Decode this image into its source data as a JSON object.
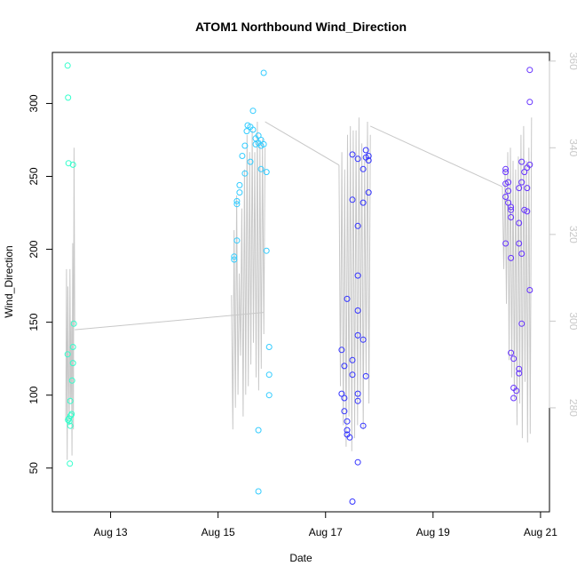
{
  "chart_data": {
    "type": "scatter",
    "title": "ATOM1 Northbound Wind_Direction",
    "xlabel": "Date",
    "ylabel": "Wind_Direction",
    "xlim": [
      "2024-08-11 22:00",
      "2024-08-21 04:00"
    ],
    "ylim": [
      20,
      335
    ],
    "y_ticks": [
      50,
      100,
      150,
      200,
      250,
      300
    ],
    "x_ticks": [
      {
        "label": "Aug 13",
        "value": "2024-08-13 00:00"
      },
      {
        "label": "Aug 15",
        "value": "2024-08-15 00:00"
      },
      {
        "label": "Aug 17",
        "value": "2024-08-17 00:00"
      },
      {
        "label": "Aug 19",
        "value": "2024-08-19 00:00"
      },
      {
        "label": "Aug 21",
        "value": "2024-08-21 00:00"
      }
    ],
    "secondary_y": {
      "ylim": [
        256,
        362
      ],
      "ticks": [
        280,
        300,
        320,
        340,
        360
      ],
      "color": "#c8c8c8"
    },
    "grid": false,
    "series": [
      {
        "color": "#33ffcc",
        "points": [
          [
            "2024-08-12 04:48",
            326
          ],
          [
            "2024-08-12 05:00",
            304
          ],
          [
            "2024-08-12 05:12",
            259
          ],
          [
            "2024-08-12 07:12",
            258
          ],
          [
            "2024-08-12 07:36",
            149
          ],
          [
            "2024-08-12 07:12",
            133
          ],
          [
            "2024-08-12 04:48",
            128
          ],
          [
            "2024-08-12 07:12",
            122
          ],
          [
            "2024-08-12 06:48",
            110
          ],
          [
            "2024-08-12 06:00",
            96
          ],
          [
            "2024-08-12 06:36",
            87
          ],
          [
            "2024-08-12 06:12",
            86
          ],
          [
            "2024-08-12 05:24",
            84
          ],
          [
            "2024-08-12 05:00",
            83
          ],
          [
            "2024-08-12 05:36",
            82
          ],
          [
            "2024-08-12 06:00",
            79
          ],
          [
            "2024-08-12 05:48",
            53
          ]
        ]
      },
      {
        "color": "#33ccff",
        "points": [
          [
            "2024-08-15 20:24",
            321
          ],
          [
            "2024-08-15 15:36",
            295
          ],
          [
            "2024-08-15 13:12",
            285
          ],
          [
            "2024-08-15 14:24",
            284
          ],
          [
            "2024-08-15 15:36",
            282
          ],
          [
            "2024-08-15 12:48",
            281
          ],
          [
            "2024-08-15 18:00",
            278
          ],
          [
            "2024-08-15 16:48",
            276
          ],
          [
            "2024-08-15 19:12",
            275
          ],
          [
            "2024-08-15 18:00",
            273
          ],
          [
            "2024-08-15 16:48",
            272
          ],
          [
            "2024-08-15 19:12",
            271
          ],
          [
            "2024-08-15 12:00",
            271
          ],
          [
            "2024-08-15 20:24",
            272
          ],
          [
            "2024-08-15 10:48",
            264
          ],
          [
            "2024-08-15 14:24",
            260
          ],
          [
            "2024-08-15 19:12",
            255
          ],
          [
            "2024-08-15 21:36",
            253
          ],
          [
            "2024-08-15 12:00",
            252
          ],
          [
            "2024-08-15 09:36",
            244
          ],
          [
            "2024-08-15 09:36",
            239
          ],
          [
            "2024-08-15 08:24",
            233
          ],
          [
            "2024-08-15 08:24",
            231
          ],
          [
            "2024-08-15 08:24",
            206
          ],
          [
            "2024-08-15 21:36",
            199
          ],
          [
            "2024-08-15 07:12",
            195
          ],
          [
            "2024-08-15 07:12",
            193
          ],
          [
            "2024-08-15 22:48",
            133
          ],
          [
            "2024-08-15 22:48",
            114
          ],
          [
            "2024-08-15 22:48",
            100
          ],
          [
            "2024-08-15 18:00",
            76
          ],
          [
            "2024-08-15 18:00",
            34
          ]
        ]
      },
      {
        "color": "#3333ff",
        "points": [
          [
            "2024-08-17 12:00",
            265
          ],
          [
            "2024-08-17 18:00",
            268
          ],
          [
            "2024-08-17 19:12",
            264
          ],
          [
            "2024-08-17 18:00",
            263
          ],
          [
            "2024-08-17 14:24",
            262
          ],
          [
            "2024-08-17 19:12",
            261
          ],
          [
            "2024-08-17 16:48",
            255
          ],
          [
            "2024-08-17 19:12",
            239
          ],
          [
            "2024-08-17 12:00",
            234
          ],
          [
            "2024-08-17 16:48",
            232
          ],
          [
            "2024-08-17 14:24",
            216
          ],
          [
            "2024-08-17 14:24",
            182
          ],
          [
            "2024-08-17 09:36",
            166
          ],
          [
            "2024-08-17 14:24",
            158
          ],
          [
            "2024-08-17 14:24",
            141
          ],
          [
            "2024-08-17 16:48",
            138
          ],
          [
            "2024-08-17 07:12",
            131
          ],
          [
            "2024-08-17 12:00",
            124
          ],
          [
            "2024-08-17 08:24",
            120
          ],
          [
            "2024-08-17 12:00",
            114
          ],
          [
            "2024-08-17 18:00",
            113
          ],
          [
            "2024-08-17 07:12",
            101
          ],
          [
            "2024-08-17 14:24",
            101
          ],
          [
            "2024-08-17 08:24",
            98
          ],
          [
            "2024-08-17 14:24",
            96
          ],
          [
            "2024-08-17 08:24",
            89
          ],
          [
            "2024-08-17 09:36",
            82
          ],
          [
            "2024-08-17 16:48",
            79
          ],
          [
            "2024-08-17 09:36",
            76
          ],
          [
            "2024-08-17 09:36",
            73
          ],
          [
            "2024-08-17 10:48",
            71
          ],
          [
            "2024-08-17 14:24",
            54
          ],
          [
            "2024-08-17 12:00",
            27
          ]
        ]
      },
      {
        "color": "#6633ff",
        "points": [
          [
            "2024-08-20 19:12",
            323
          ],
          [
            "2024-08-20 19:12",
            301
          ],
          [
            "2024-08-20 15:36",
            260
          ],
          [
            "2024-08-20 19:12",
            258
          ],
          [
            "2024-08-20 18:00",
            256
          ],
          [
            "2024-08-20 08:24",
            255
          ],
          [
            "2024-08-20 08:24",
            253
          ],
          [
            "2024-08-20 16:48",
            253
          ],
          [
            "2024-08-20 09:36",
            246
          ],
          [
            "2024-08-20 08:24",
            245
          ],
          [
            "2024-08-20 15:36",
            246
          ],
          [
            "2024-08-20 14:24",
            242
          ],
          [
            "2024-08-20 18:00",
            242
          ],
          [
            "2024-08-20 09:36",
            240
          ],
          [
            "2024-08-20 08:24",
            236
          ],
          [
            "2024-08-20 09:36",
            232
          ],
          [
            "2024-08-20 10:48",
            229
          ],
          [
            "2024-08-20 10:48",
            227
          ],
          [
            "2024-08-20 16:48",
            227
          ],
          [
            "2024-08-20 18:00",
            226
          ],
          [
            "2024-08-20 10:48",
            222
          ],
          [
            "2024-08-20 14:24",
            218
          ],
          [
            "2024-08-20 08:24",
            204
          ],
          [
            "2024-08-20 14:24",
            204
          ],
          [
            "2024-08-20 15:36",
            197
          ],
          [
            "2024-08-20 10:48",
            194
          ],
          [
            "2024-08-20 19:12",
            172
          ],
          [
            "2024-08-20 15:36",
            149
          ],
          [
            "2024-08-20 10:48",
            129
          ],
          [
            "2024-08-20 12:00",
            125
          ],
          [
            "2024-08-20 14:24",
            118
          ],
          [
            "2024-08-20 14:24",
            115
          ],
          [
            "2024-08-20 12:00",
            105
          ],
          [
            "2024-08-20 13:12",
            103
          ],
          [
            "2024-08-20 12:00",
            98
          ]
        ]
      }
    ],
    "secondary_line": {
      "color": "#c8c8c8",
      "segments": [
        {
          "start": "2024-08-12 04:00",
          "end": "2024-08-12 08:00",
          "values": [
            277,
            312,
            268,
            308,
            288,
            276,
            312,
            282,
            300,
            269,
            318,
            275,
            340,
            299
          ]
        },
        {
          "start": "2024-08-15 06:00",
          "end": "2024-08-15 21:00",
          "values": [
            306,
            275,
            321,
            280,
            329,
            283,
            311,
            292,
            326,
            278,
            335,
            283,
            343,
            285,
            339,
            290,
            344,
            295,
            339,
            287,
            346,
            284,
            341,
            289,
            342,
            297,
            340
          ]
        },
        {
          "start": "2024-08-17 06:00",
          "end": "2024-08-17 20:00",
          "values": [
            336,
            285,
            339,
            276,
            335,
            271,
            343,
            278,
            345,
            270,
            344,
            273,
            344,
            276,
            347,
            282,
            341,
            275,
            338,
            287,
            346,
            281,
            343
          ]
        },
        {
          "start": "2024-08-20 07:00",
          "end": "2024-08-20 20:00",
          "values": [
            331,
            312,
            335,
            304,
            339,
            291,
            340,
            287,
            337,
            282,
            335,
            276,
            338,
            281,
            343,
            273,
            345,
            286,
            337,
            272,
            340,
            274,
            347
          ]
        }
      ],
      "connectors": [
        [
          "2024-08-12 08:00",
          298,
          "2024-08-15 20:24",
          302
        ],
        [
          "2024-08-15 21:00",
          346,
          "2024-08-17 06:00",
          336
        ],
        [
          "2024-08-17 20:00",
          345,
          "2024-08-20 07:00",
          331
        ]
      ]
    }
  }
}
